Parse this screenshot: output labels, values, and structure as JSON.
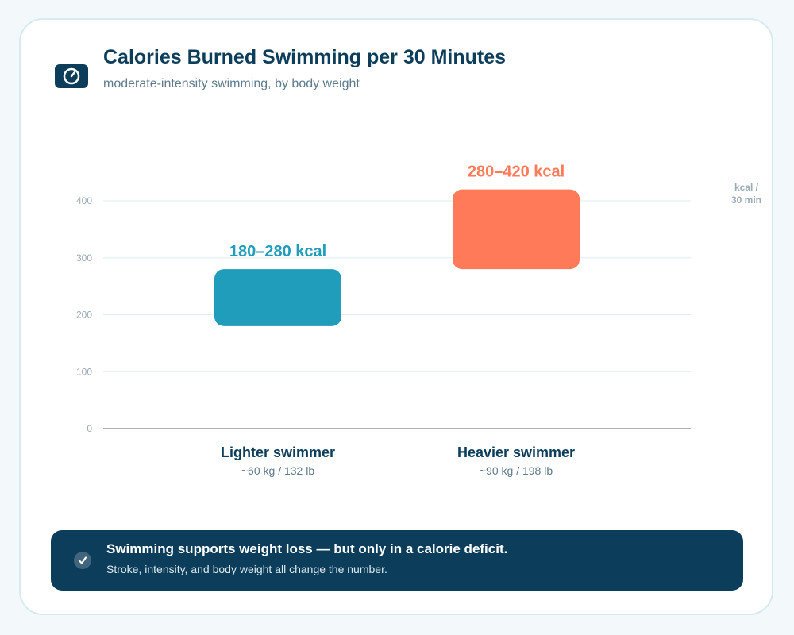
{
  "header": {
    "title": "Calories Burned Swimming per 30 Minutes",
    "subtitle": "moderate-intensity swimming, by body weight",
    "icon": "gauge-icon"
  },
  "chart_data": {
    "type": "bar",
    "subtype": "floating-range",
    "title": "Calories Burned Swimming per 30 Minutes",
    "subtitle": "moderate-intensity swimming, by body weight",
    "ylabel": "kcal / 30 min",
    "ylabel_lines": [
      "kcal /",
      "30 min"
    ],
    "ylim": [
      0,
      400
    ],
    "yticks": [
      0,
      100,
      200,
      300,
      400
    ],
    "grid": true,
    "categories": [
      "Lighter swimmer",
      "Heavier swimmer"
    ],
    "category_sublabels": [
      "~60 kg / 132 lb",
      "~90 kg / 198 lb"
    ],
    "ranges": [
      {
        "category": "Lighter swimmer",
        "low": 180,
        "high": 280,
        "label": "180–280 kcal",
        "color": "#209dba"
      },
      {
        "category": "Heavier swimmer",
        "low": 280,
        "high": 420,
        "label": "280–420 kcal",
        "color": "#ff7a59"
      }
    ]
  },
  "colors": {
    "primary": "#0c3e5b",
    "teal": "#209dba",
    "coral": "#ff7a59",
    "grid": "#dceef2",
    "axis_text": "#9aabb8"
  },
  "banner": {
    "icon": "checkmark-icon",
    "headline": "Swimming supports weight loss — but only in a calorie deficit.",
    "note": "Stroke, intensity, and body weight all change the number."
  }
}
